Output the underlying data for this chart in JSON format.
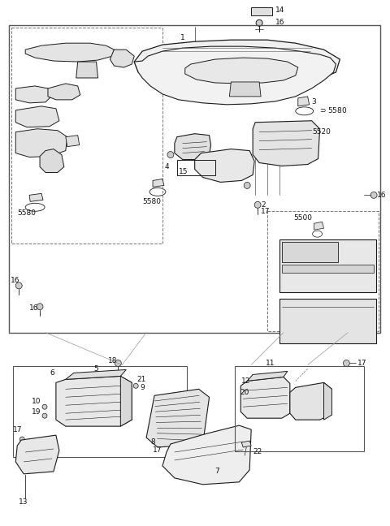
{
  "bg_color": "#ffffff",
  "line_color": "#1a1a1a",
  "text_color": "#111111",
  "fig_width": 4.8,
  "fig_height": 6.48,
  "dpi": 100,
  "label_fontsize": 6.5
}
